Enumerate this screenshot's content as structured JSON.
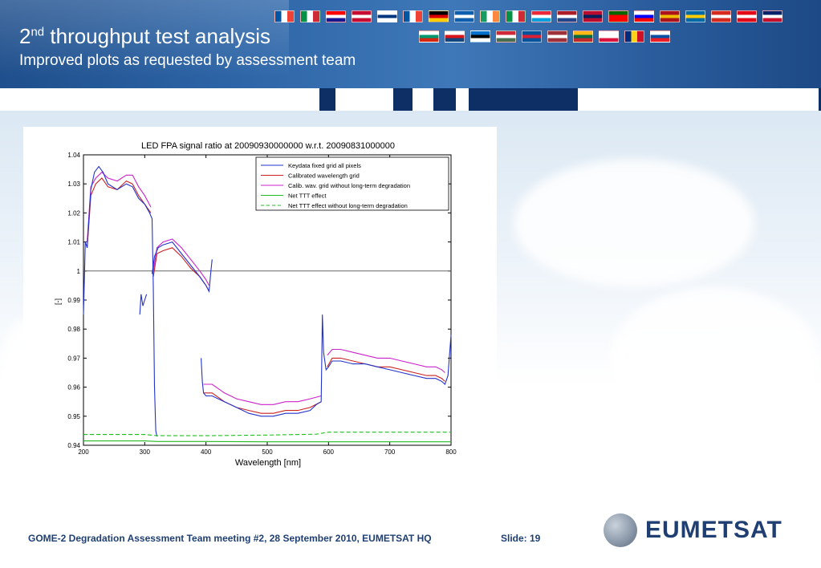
{
  "header": {
    "title_prefix": "2",
    "title_sup": "nd",
    "title_rest": " throughput test analysis",
    "subtitle": "Improved plots as requested by assessment team"
  },
  "flags_row1": [
    "FR",
    "IT",
    "HR",
    "DK",
    "FI",
    "FR",
    "DE",
    "GR",
    "IE",
    "IT",
    "LU",
    "NL",
    "NO",
    "PT",
    "SI",
    "ES",
    "SE",
    "CH",
    "TR",
    "GB"
  ],
  "flags_row2": [
    "BG",
    "CZ",
    "EE",
    "HU",
    "IS",
    "LV",
    "LT",
    "PL",
    "RO",
    "SK"
  ],
  "chart_data": {
    "type": "line",
    "title": "LED FPA signal ratio at 20090930000000 w.r.t. 20090831000000",
    "xlabel": "Wavelength [nm]",
    "ylabel": "[-]",
    "xlim": [
      200,
      800
    ],
    "ylim": [
      0.94,
      1.04
    ],
    "xticks": [
      "200",
      "300",
      "400",
      "500",
      "600",
      "700",
      "800"
    ],
    "yticks": [
      "0.94",
      "0.95",
      "0.96",
      "0.97",
      "0.98",
      "0.99",
      "1",
      "1.01",
      "1.02",
      "1.03",
      "1.04"
    ],
    "grid": false,
    "legend_position": "top-right",
    "reference_line": 1.0,
    "series": [
      {
        "name": "Keydata fixed grid all pixels",
        "color": "#2233cc",
        "dash": "solid",
        "segments": [
          [
            [
              200,
              0.985
            ],
            [
              203,
              1.01
            ],
            [
              206,
              1.008
            ],
            [
              212,
              1.028
            ],
            [
              218,
              1.034
            ],
            [
              225,
              1.036
            ],
            [
              232,
              1.034
            ],
            [
              240,
              1.03
            ],
            [
              255,
              1.028
            ],
            [
              270,
              1.03
            ],
            [
              280,
              1.029
            ],
            [
              290,
              1.025
            ],
            [
              300,
              1.023
            ],
            [
              308,
              1.02
            ],
            [
              312,
              1.018
            ],
            [
              314,
              0.995
            ],
            [
              316,
              0.96
            ],
            [
              318,
              0.945
            ],
            [
              320,
              0.943
            ]
          ],
          [
            [
              292,
              0.985
            ],
            [
              294,
              0.992
            ],
            [
              297,
              0.988
            ],
            [
              300,
              0.99
            ],
            [
              303,
              0.992
            ]
          ],
          [
            [
              312,
              0.999
            ],
            [
              316,
              1.005
            ],
            [
              322,
              1.008
            ],
            [
              330,
              1.009
            ],
            [
              345,
              1.01
            ],
            [
              360,
              1.006
            ],
            [
              375,
              1.002
            ],
            [
              390,
              0.998
            ],
            [
              400,
              0.995
            ],
            [
              405,
              0.993
            ],
            [
              408,
              1.0
            ],
            [
              410,
              1.004
            ]
          ],
          [
            [
              392,
              0.97
            ],
            [
              394,
              0.962
            ],
            [
              396,
              0.958
            ],
            [
              400,
              0.957
            ],
            [
              410,
              0.957
            ],
            [
              430,
              0.955
            ],
            [
              450,
              0.953
            ],
            [
              470,
              0.951
            ],
            [
              490,
              0.95
            ],
            [
              510,
              0.95
            ],
            [
              530,
              0.951
            ],
            [
              550,
              0.951
            ],
            [
              570,
              0.952
            ],
            [
              580,
              0.954
            ],
            [
              588,
              0.955
            ],
            [
              590,
              0.985
            ],
            [
              592,
              0.972
            ],
            [
              596,
              0.966
            ],
            [
              600,
              0.967
            ],
            [
              606,
              0.969
            ],
            [
              620,
              0.969
            ],
            [
              640,
              0.968
            ],
            [
              660,
              0.968
            ],
            [
              680,
              0.967
            ],
            [
              700,
              0.966
            ],
            [
              720,
              0.965
            ],
            [
              740,
              0.964
            ],
            [
              760,
              0.963
            ],
            [
              775,
              0.963
            ],
            [
              785,
              0.962
            ],
            [
              790,
              0.961
            ],
            [
              795,
              0.964
            ],
            [
              800,
              0.978
            ]
          ]
        ]
      },
      {
        "name": "Calibrated wavelength grid",
        "color": "#cc2222",
        "dash": "solid",
        "segments": [
          [
            [
              206,
              1.008
            ],
            [
              212,
              1.026
            ],
            [
              220,
              1.03
            ],
            [
              230,
              1.032
            ],
            [
              240,
              1.029
            ],
            [
              255,
              1.028
            ],
            [
              270,
              1.031
            ],
            [
              280,
              1.03
            ],
            [
              290,
              1.026
            ],
            [
              300,
              1.023
            ],
            [
              310,
              1.02
            ]
          ],
          [
            [
              314,
              0.998
            ],
            [
              320,
              1.006
            ],
            [
              330,
              1.007
            ],
            [
              345,
              1.008
            ],
            [
              360,
              1.005
            ],
            [
              375,
              1.001
            ],
            [
              390,
              0.998
            ],
            [
              400,
              0.995
            ],
            [
              405,
              0.993
            ]
          ],
          [
            [
              396,
              0.958
            ],
            [
              400,
              0.958
            ],
            [
              410,
              0.958
            ],
            [
              430,
              0.955
            ],
            [
              450,
              0.953
            ],
            [
              470,
              0.952
            ],
            [
              490,
              0.951
            ],
            [
              510,
              0.951
            ],
            [
              530,
              0.952
            ],
            [
              550,
              0.952
            ],
            [
              570,
              0.953
            ],
            [
              588,
              0.955
            ]
          ],
          [
            [
              598,
              0.967
            ],
            [
              606,
              0.97
            ],
            [
              620,
              0.97
            ],
            [
              640,
              0.969
            ],
            [
              660,
              0.968
            ],
            [
              680,
              0.967
            ],
            [
              700,
              0.967
            ],
            [
              720,
              0.966
            ],
            [
              740,
              0.965
            ],
            [
              760,
              0.964
            ],
            [
              775,
              0.964
            ],
            [
              785,
              0.963
            ],
            [
              790,
              0.962
            ]
          ]
        ]
      },
      {
        "name": "Calib. wav. grid without long-term degradation",
        "color": "#cc22cc",
        "dash": "solid",
        "segments": [
          [
            [
              206,
              1.01
            ],
            [
              212,
              1.029
            ],
            [
              220,
              1.032
            ],
            [
              230,
              1.034
            ],
            [
              240,
              1.032
            ],
            [
              255,
              1.031
            ],
            [
              270,
              1.033
            ],
            [
              280,
              1.033
            ],
            [
              290,
              1.029
            ],
            [
              300,
              1.026
            ],
            [
              310,
              1.022
            ]
          ],
          [
            [
              314,
              1.0
            ],
            [
              320,
              1.008
            ],
            [
              330,
              1.01
            ],
            [
              345,
              1.011
            ],
            [
              360,
              1.008
            ],
            [
              375,
              1.004
            ],
            [
              390,
              1.0
            ],
            [
              400,
              0.997
            ],
            [
              405,
              0.995
            ]
          ],
          [
            [
              396,
              0.961
            ],
            [
              400,
              0.961
            ],
            [
              410,
              0.961
            ],
            [
              430,
              0.958
            ],
            [
              450,
              0.956
            ],
            [
              470,
              0.955
            ],
            [
              490,
              0.954
            ],
            [
              510,
              0.954
            ],
            [
              530,
              0.955
            ],
            [
              550,
              0.955
            ],
            [
              570,
              0.956
            ],
            [
              588,
              0.957
            ]
          ],
          [
            [
              598,
              0.971
            ],
            [
              606,
              0.973
            ],
            [
              620,
              0.973
            ],
            [
              640,
              0.972
            ],
            [
              660,
              0.971
            ],
            [
              680,
              0.97
            ],
            [
              700,
              0.97
            ],
            [
              720,
              0.969
            ],
            [
              740,
              0.968
            ],
            [
              760,
              0.967
            ],
            [
              775,
              0.967
            ],
            [
              785,
              0.966
            ],
            [
              790,
              0.965
            ]
          ]
        ]
      },
      {
        "name": "Net TTT effect",
        "color": "#22bb22",
        "dash": "solid",
        "segments": [
          [
            [
              200,
              0.9415
            ],
            [
              300,
              0.9415
            ],
            [
              320,
              0.9413
            ],
            [
              400,
              0.9413
            ],
            [
              500,
              0.9412
            ],
            [
              580,
              0.9412
            ],
            [
              600,
              0.9412
            ],
            [
              700,
              0.9412
            ],
            [
              800,
              0.9412
            ]
          ]
        ]
      },
      {
        "name": "Net TTT effect without long-term degradation",
        "color": "#22bb22",
        "dash": "dashed",
        "segments": [
          [
            [
              200,
              0.9437
            ],
            [
              300,
              0.9437
            ],
            [
              320,
              0.9433
            ],
            [
              400,
              0.9433
            ],
            [
              500,
              0.9435
            ],
            [
              580,
              0.9438
            ],
            [
              600,
              0.9445
            ],
            [
              700,
              0.9445
            ],
            [
              800,
              0.9445
            ]
          ]
        ]
      }
    ]
  },
  "footer": {
    "meeting": "GOME-2 Degradation Assessment Team meeting #2, 28 September 2010, EUMETSAT HQ",
    "slide": "Slide: 19",
    "logo_text": "EUMETSAT"
  },
  "colors": {
    "banner": "#2e66a8",
    "footer_text": "#1f3f73"
  }
}
